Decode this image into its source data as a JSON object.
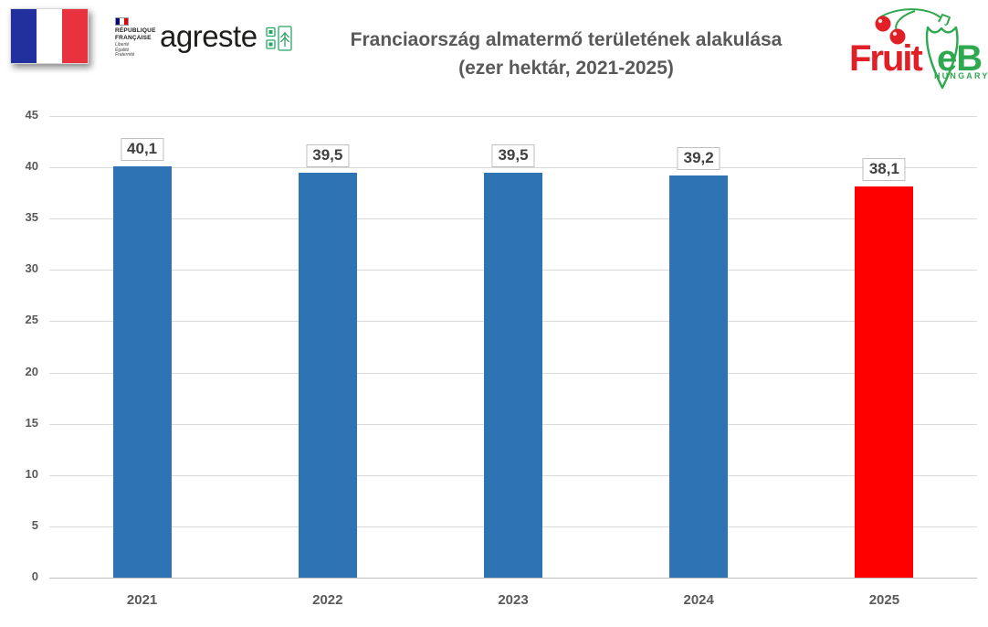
{
  "header": {
    "title_line1": "Franciaország almatermő területének alakulása",
    "title_line2": "(ezer hektár, 2021-2025)",
    "republique": {
      "name_line1": "RÉPUBLIQUE",
      "name_line2": "FRANÇAISE",
      "motto_line1": "Liberté",
      "motto_line2": "Égalité",
      "motto_line3": "Fraternité"
    },
    "agreste_label": "agreste",
    "fruitveb": {
      "word_part1": "Fruit",
      "word_part2": "eB",
      "country": "HUNGARY"
    }
  },
  "colors": {
    "bar_blue": "#2E74B5",
    "bar_red": "#FF0000",
    "title_gray": "#595959",
    "grid_gray": "#D9D9D9",
    "axis_gray": "#BFBFBF",
    "fruitveb_red": "#E01F26",
    "fruitveb_green": "#2FA84F",
    "agreste_green": "#27A463",
    "flag_blue": "#21309C",
    "flag_red": "#E8333E"
  },
  "chart_data": {
    "type": "bar",
    "title": "Franciaország almatermő területének alakulása (ezer hektár, 2021-2025)",
    "categories": [
      "2021",
      "2022",
      "2023",
      "2024",
      "2025"
    ],
    "values": [
      40.1,
      39.5,
      39.5,
      39.2,
      38.1
    ],
    "value_labels": [
      "40,1",
      "39,5",
      "39,5",
      "39,2",
      "38,1"
    ],
    "bar_colors": [
      "#2E74B5",
      "#2E74B5",
      "#2E74B5",
      "#2E74B5",
      "#FF0000"
    ],
    "xlabel": "",
    "ylabel": "",
    "unit": "ezer hektár",
    "ylim": [
      0,
      45
    ],
    "ytick_step": 5,
    "yticks": [
      0,
      5,
      10,
      15,
      20,
      25,
      30,
      35,
      40,
      45
    ],
    "grid": true,
    "legend_position": "none",
    "data_label_style": "boxed"
  }
}
